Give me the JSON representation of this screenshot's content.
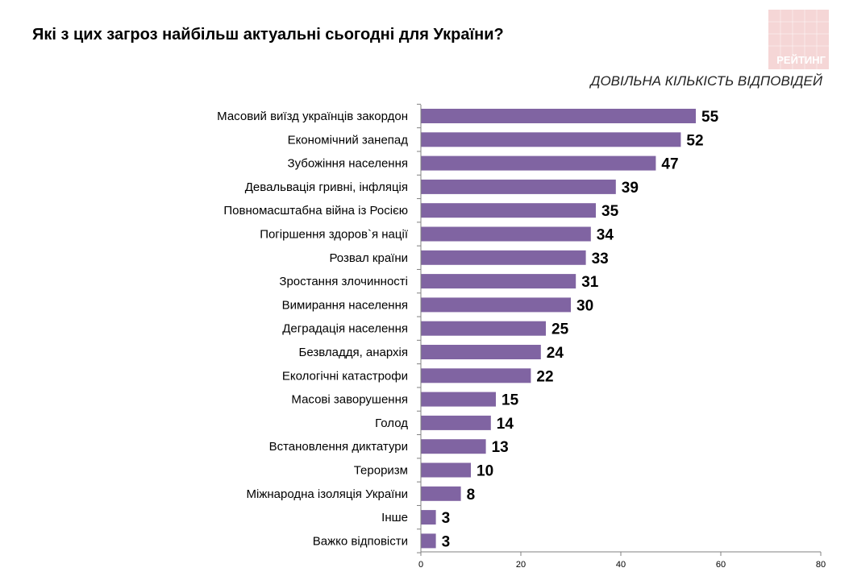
{
  "chart_data": {
    "type": "bar",
    "orientation": "horizontal",
    "title": "Які з цих загроз найбільш актуальні сьогодні для України?",
    "subtitle": "ДОВІЛЬНА КІЛЬКІСТЬ ВІДПОВІДЕЙ",
    "categories": [
      "Масовий виїзд українців закордон",
      "Економічний занепад",
      "Зубожіння населення",
      "Девальвація гривні, інфляція",
      "Повномасштабна війна із Росією",
      "Погіршення здоров`я нації",
      "Розвал країни",
      "Зростання злочинності",
      "Вимирання населення",
      "Деградація населення",
      "Безвладдя, анархія",
      "Екологічні катастрофи",
      "Масові заворушення",
      "Голод",
      "Встановлення диктатури",
      "Тероризм",
      "Міжнародна ізоляція України",
      "Інше",
      "Важко відповісти"
    ],
    "values": [
      55,
      52,
      47,
      39,
      35,
      34,
      33,
      31,
      30,
      25,
      24,
      22,
      15,
      14,
      13,
      10,
      8,
      3,
      3
    ],
    "xlim": [
      0,
      80
    ],
    "xticks": [
      "0",
      "20",
      "40",
      "60",
      "80"
    ],
    "bar_color": "#8064a2",
    "grid": false
  },
  "logo": {
    "text": "РЕЙТИНГ",
    "color": "#f5d6d6"
  }
}
